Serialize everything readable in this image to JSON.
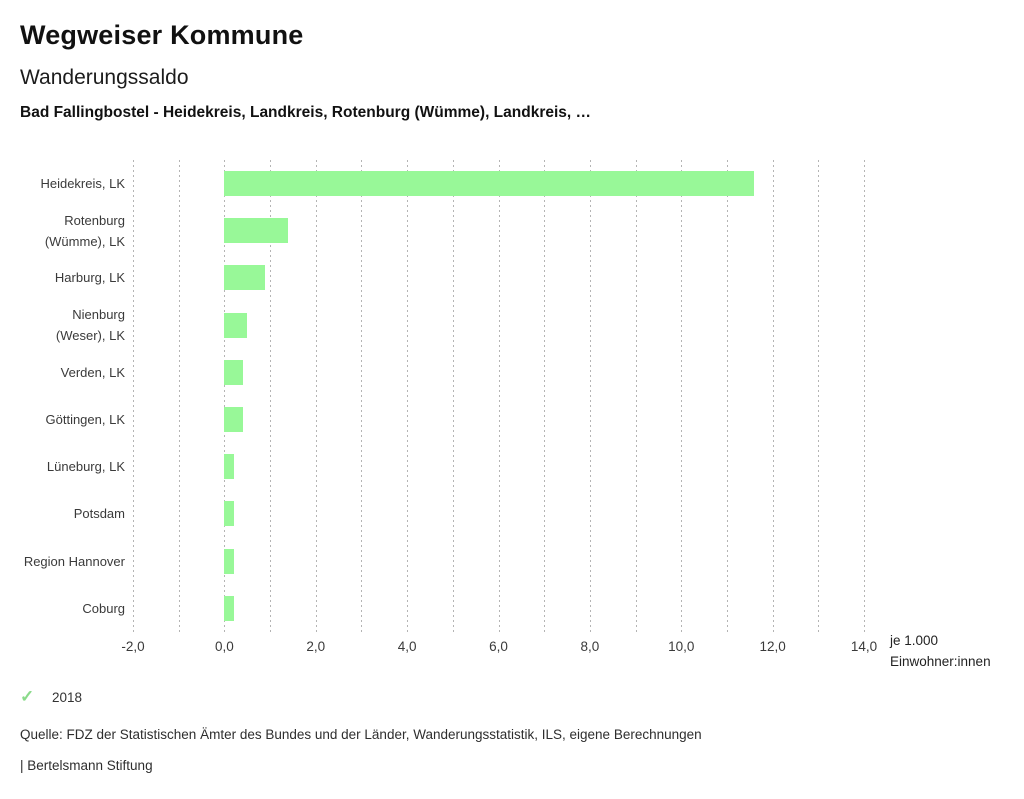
{
  "header": {
    "title": "Wegweiser Kommune",
    "subtitle": "Wanderungssaldo",
    "description": "Bad Fallingbostel - Heidekreis, Landkreis, Rotenburg (Wümme), Landkreis, …"
  },
  "chart_data": {
    "type": "bar",
    "orientation": "horizontal",
    "categories": [
      "Heidekreis, LK",
      "Rotenburg (Wümme), LK",
      "Harburg, LK",
      "Nienburg (Weser), LK",
      "Verden, LK",
      "Göttingen, LK",
      "Lüneburg, LK",
      "Potsdam",
      "Region Hannover",
      "Coburg"
    ],
    "values": [
      11.6,
      1.4,
      0.9,
      0.5,
      0.4,
      0.4,
      0.2,
      0.2,
      0.2,
      0.2
    ],
    "series_year": "2018",
    "xlim": [
      -2,
      14
    ],
    "grid_interval": 1,
    "xticks": [
      -2,
      0,
      2,
      4,
      6,
      8,
      10,
      12,
      14
    ],
    "xtick_labels": [
      "-2,0",
      "0,0",
      "2,0",
      "4,0",
      "6,0",
      "8,0",
      "10,0",
      "12,0",
      "14,0"
    ],
    "unit_label": [
      "je 1.000",
      "Einwohner:innen"
    ],
    "bar_color": "#98f898",
    "grid_style": "vertical dashed",
    "legend_position": "bottom-left"
  },
  "legend": {
    "check_icon": "✓",
    "year": "2018",
    "check_color": "#8ada8a"
  },
  "footer": {
    "source": "Quelle: FDZ der Statistischen Ämter des Bundes und der Länder, Wanderungsstatistik, ILS, eigene Berechnungen",
    "branding": "| Bertelsmann Stiftung"
  }
}
